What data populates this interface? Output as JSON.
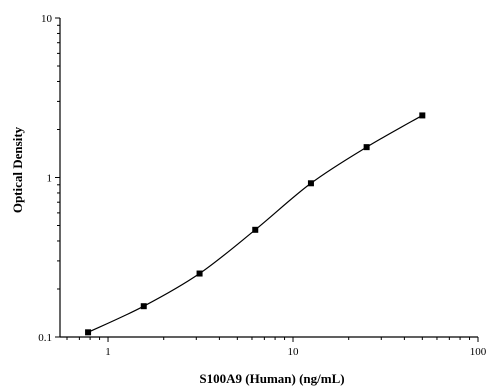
{
  "chart_data": {
    "type": "scatter",
    "xlabel": "S100A9 (Human) (ng/mL)",
    "ylabel": "Optical Density",
    "x_scale": "log",
    "y_scale": "log",
    "xlim": [
      0.55,
      100
    ],
    "ylim": [
      0.1,
      10
    ],
    "x_ticks": [
      {
        "value": 1,
        "label": "1"
      },
      {
        "value": 10,
        "label": "10"
      },
      {
        "value": 100,
        "label": "100"
      }
    ],
    "y_ticks": [
      {
        "value": 0.1,
        "label": "0.1"
      },
      {
        "value": 1,
        "label": "1"
      },
      {
        "value": 10,
        "label": "10"
      }
    ],
    "grid": false,
    "series": [
      {
        "points": [
          {
            "x": 0.78,
            "y": 0.107
          },
          {
            "x": 1.56,
            "y": 0.156
          },
          {
            "x": 3.125,
            "y": 0.25
          },
          {
            "x": 6.25,
            "y": 0.47
          },
          {
            "x": 12.5,
            "y": 0.92
          },
          {
            "x": 25,
            "y": 1.55
          },
          {
            "x": 50,
            "y": 2.45
          }
        ],
        "fit_curve": true
      }
    ]
  }
}
